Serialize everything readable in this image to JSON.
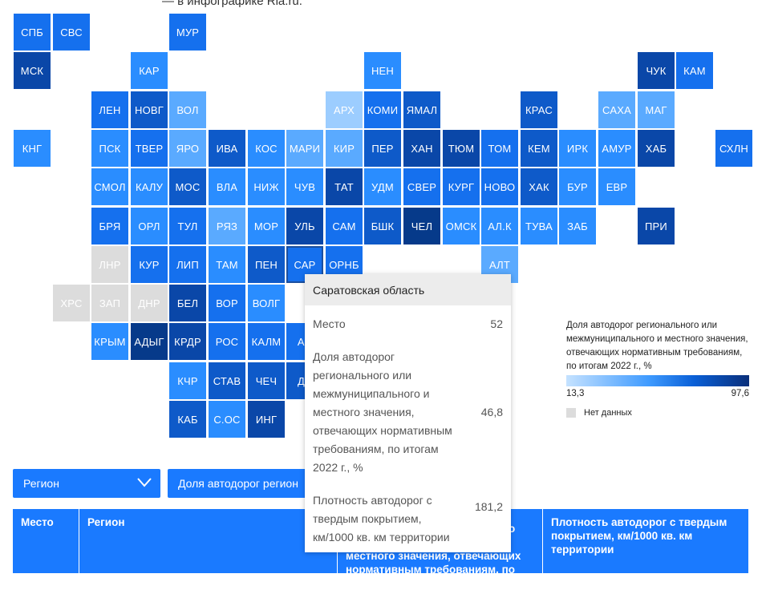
{
  "intro_text": "— в инфографике Ria.ru.",
  "colors": {
    "c1": "#9ccdff",
    "c2": "#5aaaff",
    "c3": "#2a8dff",
    "c4": "#1570ee",
    "c5": "#0e5ac9",
    "c6": "#0a47a8",
    "c7": "#063a8a",
    "nd": "#dcdcdc",
    "accent": "#1a7aff"
  },
  "regions": [
    {
      "abbr": "СПБ",
      "col": 0,
      "row": 0,
      "shade": "c4"
    },
    {
      "abbr": "СВС",
      "col": 1,
      "row": 0,
      "shade": "c4"
    },
    {
      "abbr": "МУР",
      "col": 4,
      "row": 0,
      "shade": "c4"
    },
    {
      "abbr": "МСК",
      "col": 0,
      "row": 1,
      "shade": "c6"
    },
    {
      "abbr": "КАР",
      "col": 3,
      "row": 1,
      "shade": "c3"
    },
    {
      "abbr": "НЕН",
      "col": 9,
      "row": 1,
      "shade": "c3"
    },
    {
      "abbr": "ЧУК",
      "col": 16,
      "row": 1,
      "shade": "c6"
    },
    {
      "abbr": "КАМ",
      "col": 17,
      "row": 1,
      "shade": "c4"
    },
    {
      "abbr": "ЛЕН",
      "col": 2,
      "row": 2,
      "shade": "c4"
    },
    {
      "abbr": "НОВГ",
      "col": 3,
      "row": 2,
      "shade": "c5"
    },
    {
      "abbr": "ВОЛ",
      "col": 4,
      "row": 2,
      "shade": "c2"
    },
    {
      "abbr": "АРХ",
      "col": 8,
      "row": 2,
      "shade": "c1"
    },
    {
      "abbr": "КОМИ",
      "col": 9,
      "row": 2,
      "shade": "c4"
    },
    {
      "abbr": "ЯМАЛ",
      "col": 10,
      "row": 2,
      "shade": "c5"
    },
    {
      "abbr": "КРАС",
      "col": 13,
      "row": 2,
      "shade": "c5"
    },
    {
      "abbr": "САХА",
      "col": 15,
      "row": 2,
      "shade": "c2"
    },
    {
      "abbr": "МАГ",
      "col": 16,
      "row": 2,
      "shade": "c2"
    },
    {
      "abbr": "КНГ",
      "col": 0,
      "row": 3,
      "shade": "c3"
    },
    {
      "abbr": "ПСК",
      "col": 2,
      "row": 3,
      "shade": "c3"
    },
    {
      "abbr": "ТВЕР",
      "col": 3,
      "row": 3,
      "shade": "c4"
    },
    {
      "abbr": "ЯРО",
      "col": 4,
      "row": 3,
      "shade": "c2"
    },
    {
      "abbr": "ИВА",
      "col": 5,
      "row": 3,
      "shade": "c5"
    },
    {
      "abbr": "КОС",
      "col": 6,
      "row": 3,
      "shade": "c3"
    },
    {
      "abbr": "МАРИ",
      "col": 7,
      "row": 3,
      "shade": "c2"
    },
    {
      "abbr": "КИР",
      "col": 8,
      "row": 3,
      "shade": "c2"
    },
    {
      "abbr": "ПЕР",
      "col": 9,
      "row": 3,
      "shade": "c5"
    },
    {
      "abbr": "ХАН",
      "col": 10,
      "row": 3,
      "shade": "c6"
    },
    {
      "abbr": "ТЮМ",
      "col": 11,
      "row": 3,
      "shade": "c6"
    },
    {
      "abbr": "ТОМ",
      "col": 12,
      "row": 3,
      "shade": "c4"
    },
    {
      "abbr": "КЕМ",
      "col": 13,
      "row": 3,
      "shade": "c5"
    },
    {
      "abbr": "ИРК",
      "col": 14,
      "row": 3,
      "shade": "c3"
    },
    {
      "abbr": "АМУР",
      "col": 15,
      "row": 3,
      "shade": "c3"
    },
    {
      "abbr": "ХАБ",
      "col": 16,
      "row": 3,
      "shade": "c6"
    },
    {
      "abbr": "СХЛН",
      "col": 18,
      "row": 3,
      "shade": "c4"
    },
    {
      "abbr": "СМОЛ",
      "col": 2,
      "row": 4,
      "shade": "c3"
    },
    {
      "abbr": "КАЛУ",
      "col": 3,
      "row": 4,
      "shade": "c3"
    },
    {
      "abbr": "МОС",
      "col": 4,
      "row": 4,
      "shade": "c5"
    },
    {
      "abbr": "ВЛА",
      "col": 5,
      "row": 4,
      "shade": "c3"
    },
    {
      "abbr": "НИЖ",
      "col": 6,
      "row": 4,
      "shade": "c3"
    },
    {
      "abbr": "ЧУВ",
      "col": 7,
      "row": 4,
      "shade": "c3"
    },
    {
      "abbr": "ТАТ",
      "col": 8,
      "row": 4,
      "shade": "c6"
    },
    {
      "abbr": "УДМ",
      "col": 9,
      "row": 4,
      "shade": "c3"
    },
    {
      "abbr": "СВЕР",
      "col": 10,
      "row": 4,
      "shade": "c4"
    },
    {
      "abbr": "КУРГ",
      "col": 11,
      "row": 4,
      "shade": "c4"
    },
    {
      "abbr": "НОВО",
      "col": 12,
      "row": 4,
      "shade": "c4"
    },
    {
      "abbr": "ХАК",
      "col": 13,
      "row": 4,
      "shade": "c5"
    },
    {
      "abbr": "БУР",
      "col": 14,
      "row": 4,
      "shade": "c3"
    },
    {
      "abbr": "ЕВР",
      "col": 15,
      "row": 4,
      "shade": "c3"
    },
    {
      "abbr": "БРЯ",
      "col": 2,
      "row": 5,
      "shade": "c4"
    },
    {
      "abbr": "ОРЛ",
      "col": 3,
      "row": 5,
      "shade": "c3"
    },
    {
      "abbr": "ТУЛ",
      "col": 4,
      "row": 5,
      "shade": "c4"
    },
    {
      "abbr": "РЯЗ",
      "col": 5,
      "row": 5,
      "shade": "c2"
    },
    {
      "abbr": "МОР",
      "col": 6,
      "row": 5,
      "shade": "c3"
    },
    {
      "abbr": "УЛЬ",
      "col": 7,
      "row": 5,
      "shade": "c6"
    },
    {
      "abbr": "САМ",
      "col": 8,
      "row": 5,
      "shade": "c4"
    },
    {
      "abbr": "БШК",
      "col": 9,
      "row": 5,
      "shade": "c5"
    },
    {
      "abbr": "ЧЕЛ",
      "col": 10,
      "row": 5,
      "shade": "c7"
    },
    {
      "abbr": "ОМСК",
      "col": 11,
      "row": 5,
      "shade": "c3"
    },
    {
      "abbr": "АЛ.К",
      "col": 12,
      "row": 5,
      "shade": "c3"
    },
    {
      "abbr": "ТУВА",
      "col": 13,
      "row": 5,
      "shade": "c3"
    },
    {
      "abbr": "ЗАБ",
      "col": 14,
      "row": 5,
      "shade": "c3"
    },
    {
      "abbr": "ПРИ",
      "col": 16,
      "row": 5,
      "shade": "c6"
    },
    {
      "abbr": "ЛНР",
      "col": 2,
      "row": 6,
      "shade": "nd"
    },
    {
      "abbr": "КУР",
      "col": 3,
      "row": 6,
      "shade": "c4"
    },
    {
      "abbr": "ЛИП",
      "col": 4,
      "row": 6,
      "shade": "c4"
    },
    {
      "abbr": "ТАМ",
      "col": 5,
      "row": 6,
      "shade": "c3"
    },
    {
      "abbr": "ПЕН",
      "col": 6,
      "row": 6,
      "shade": "c5"
    },
    {
      "abbr": "САР",
      "col": 7,
      "row": 6,
      "shade": "c4",
      "active": true
    },
    {
      "abbr": "ОРНБ",
      "col": 8,
      "row": 6,
      "shade": "c4"
    },
    {
      "abbr": "АЛТ",
      "col": 12,
      "row": 6,
      "shade": "c2"
    },
    {
      "abbr": "ХРС",
      "col": 1,
      "row": 7,
      "shade": "nd"
    },
    {
      "abbr": "ЗАП",
      "col": 2,
      "row": 7,
      "shade": "nd"
    },
    {
      "abbr": "ДНР",
      "col": 3,
      "row": 7,
      "shade": "nd"
    },
    {
      "abbr": "БЕЛ",
      "col": 4,
      "row": 7,
      "shade": "c6"
    },
    {
      "abbr": "ВОР",
      "col": 5,
      "row": 7,
      "shade": "c4"
    },
    {
      "abbr": "ВОЛГ",
      "col": 6,
      "row": 7,
      "shade": "c3"
    },
    {
      "abbr": "КРЫМ",
      "col": 2,
      "row": 8,
      "shade": "c3"
    },
    {
      "abbr": "АДЫГ",
      "col": 3,
      "row": 8,
      "shade": "c7"
    },
    {
      "abbr": "КРДР",
      "col": 4,
      "row": 8,
      "shade": "c6"
    },
    {
      "abbr": "РОС",
      "col": 5,
      "row": 8,
      "shade": "c4"
    },
    {
      "abbr": "КАЛМ",
      "col": 6,
      "row": 8,
      "shade": "c4"
    },
    {
      "abbr": "АС",
      "col": 7,
      "row": 8,
      "shade": "c4"
    },
    {
      "abbr": "КЧР",
      "col": 4,
      "row": 9,
      "shade": "c3"
    },
    {
      "abbr": "СТАВ",
      "col": 5,
      "row": 9,
      "shade": "c5"
    },
    {
      "abbr": "ЧЕЧ",
      "col": 6,
      "row": 9,
      "shade": "c5"
    },
    {
      "abbr": "ДА",
      "col": 7,
      "row": 9,
      "shade": "c5"
    },
    {
      "abbr": "КАБ",
      "col": 4,
      "row": 10,
      "shade": "c5"
    },
    {
      "abbr": "С.ОС",
      "col": 5,
      "row": 10,
      "shade": "c3"
    },
    {
      "abbr": "ИНГ",
      "col": 6,
      "row": 10,
      "shade": "c6"
    }
  ],
  "legend": {
    "title": "Доля автодорог регионального или межмуниципального и местного значения, отвечающих нормативным требованиям, по итогам 2022 г., %",
    "min": "13,3",
    "max": "97,6",
    "nodata_label": "Нет данных"
  },
  "tooltip": {
    "region": "Саратовская область",
    "rows": [
      {
        "label": "Место",
        "value": "52"
      },
      {
        "label": "Доля автодорог регионального или межмуниципального и местного значения, отвечающих нормативным требованиям, по итогам 2022 г., %",
        "value": "46,8"
      },
      {
        "label": "Плотность автодорог с твердым покрытием, км/1000 кв. км территории",
        "value": "181,2"
      }
    ]
  },
  "controls": {
    "region_select": "Регион",
    "metric_select": "Доля автодорог регион"
  },
  "table": {
    "headers": [
      "Место",
      "Регион",
      "Доля автодорог регионального или межмуниципального и местного значения, отвечающих нормативным требованиям, по итогам 2022 г., %",
      "Плотность автодорог с твердым покрытием, км/1000 кв. км территории"
    ]
  }
}
